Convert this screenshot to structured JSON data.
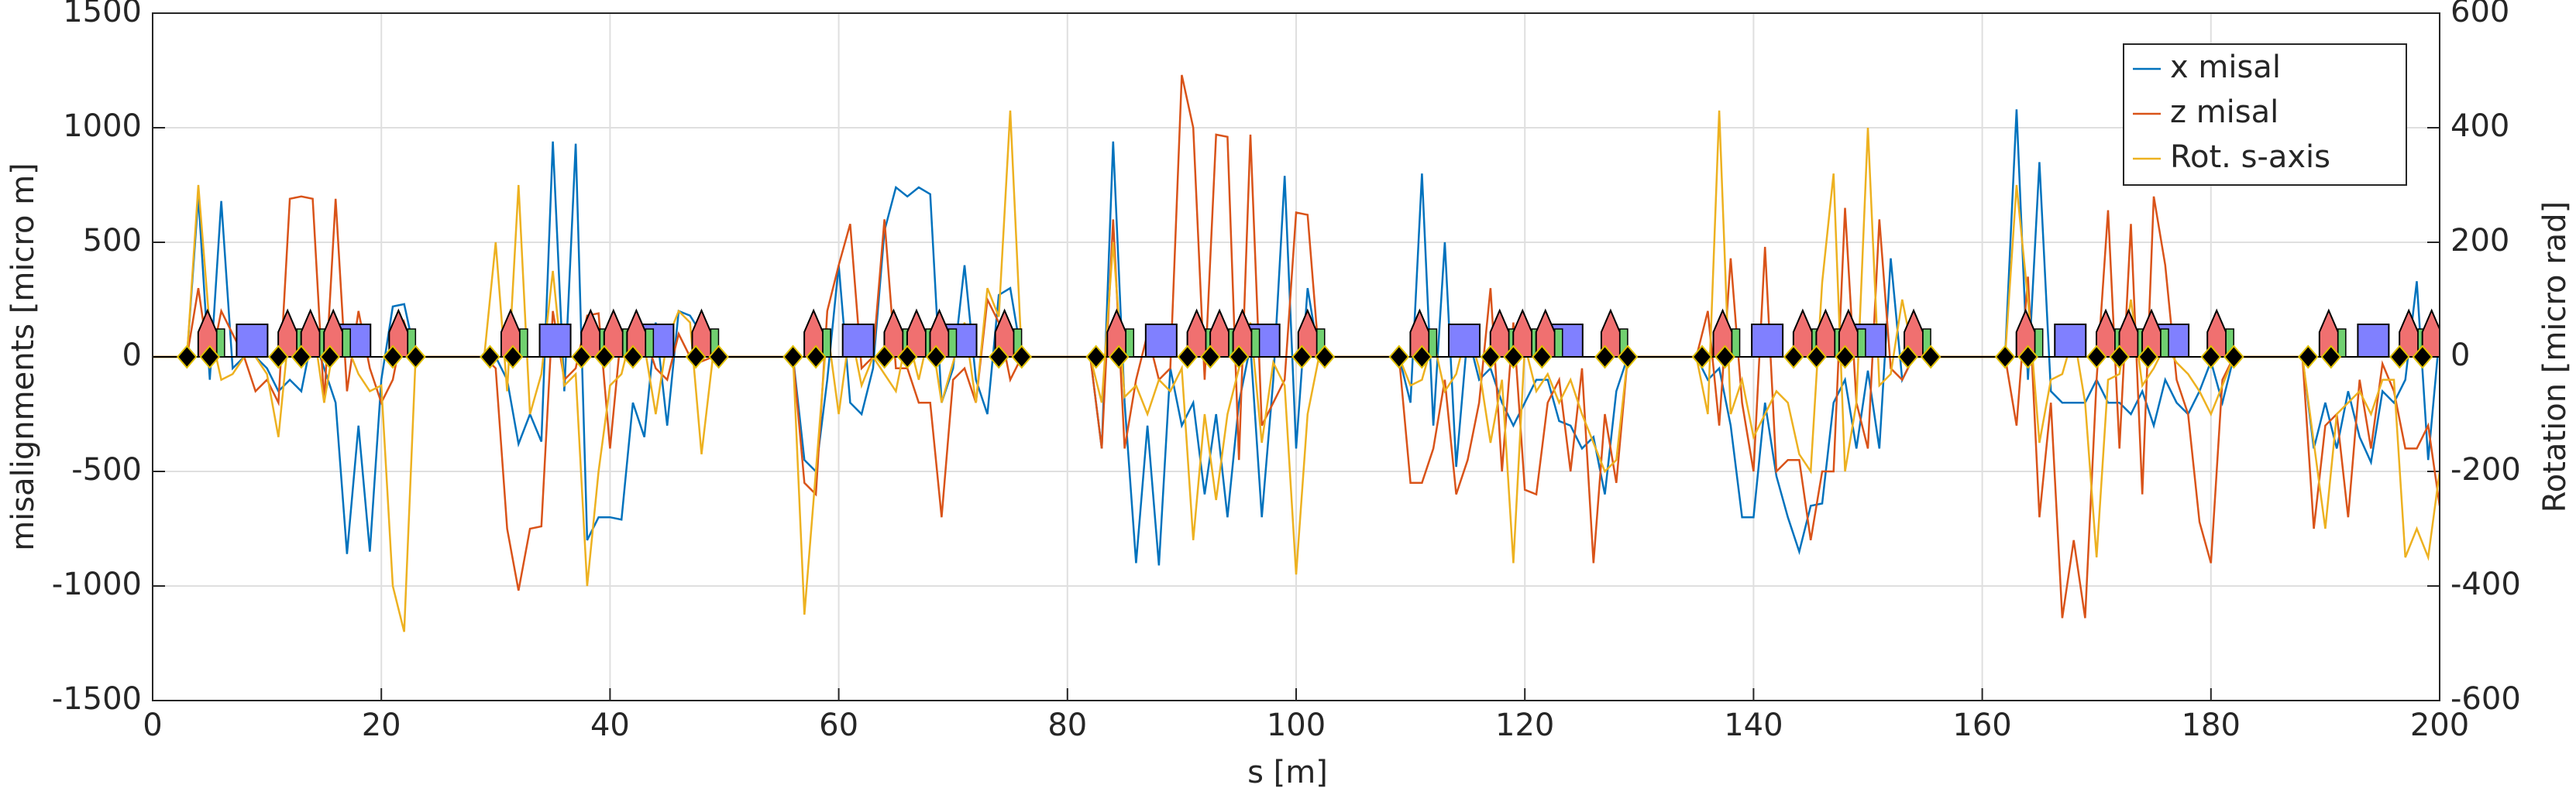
{
  "chart_data": {
    "type": "line",
    "xlabel": "s [m]",
    "ylabel": "misalignments [micro m]",
    "y2label": "Rotation [micro rad]",
    "xlim": [
      0,
      200
    ],
    "xticks": [
      0,
      20,
      40,
      60,
      80,
      100,
      120,
      140,
      160,
      180,
      200
    ],
    "ylim": [
      -1500,
      1500
    ],
    "yticks": [
      -1500,
      -1000,
      -500,
      0,
      500,
      1000,
      1500
    ],
    "y2lim": [
      -600,
      600
    ],
    "y2ticks": [
      -600,
      -400,
      -200,
      0,
      200,
      400,
      600
    ],
    "grid": true,
    "legend": "northeast",
    "x": [
      0,
      3,
      4,
      5,
      6,
      7,
      8,
      9,
      10,
      11,
      12,
      13,
      14,
      15,
      16,
      17,
      18,
      19,
      20,
      21,
      22,
      23,
      29,
      30,
      31,
      32,
      33,
      34,
      35,
      36,
      37,
      38,
      39,
      40,
      41,
      42,
      43,
      44,
      45,
      46,
      47,
      48,
      49,
      56,
      57,
      58,
      59,
      60,
      61,
      62,
      63,
      64,
      65,
      66,
      67,
      68,
      69,
      70,
      71,
      72,
      73,
      74,
      75,
      76,
      82,
      83,
      84,
      85,
      86,
      87,
      88,
      89,
      90,
      91,
      92,
      93,
      94,
      95,
      96,
      97,
      98,
      99,
      100,
      101,
      102,
      109,
      110,
      111,
      112,
      113,
      114,
      115,
      116,
      117,
      118,
      119,
      120,
      121,
      122,
      123,
      124,
      125,
      126,
      127,
      128,
      129,
      135,
      136,
      137,
      138,
      139,
      140,
      141,
      142,
      143,
      144,
      145,
      146,
      147,
      148,
      149,
      150,
      151,
      152,
      153,
      154,
      155,
      162,
      163,
      164,
      165,
      166,
      167,
      168,
      169,
      170,
      171,
      172,
      173,
      174,
      175,
      176,
      177,
      178,
      179,
      180,
      181,
      182,
      188,
      189,
      190,
      191,
      192,
      193,
      194,
      195,
      196,
      197,
      198,
      199,
      200
    ],
    "series": [
      {
        "name": "x misal",
        "color": "#0072bd",
        "values": [
          0,
          0,
          700,
          -100,
          680,
          -50,
          0,
          0,
          -50,
          -150,
          -100,
          -150,
          100,
          -50,
          -200,
          -860,
          -300,
          -850,
          -100,
          220,
          230,
          0,
          0,
          0,
          -100,
          -380,
          -250,
          -370,
          940,
          -150,
          930,
          -800,
          -700,
          -700,
          -710,
          -200,
          -350,
          150,
          -300,
          200,
          180,
          100,
          0,
          0,
          -450,
          -500,
          -100,
          400,
          -200,
          -250,
          -50,
          550,
          740,
          700,
          740,
          710,
          -200,
          -50,
          400,
          -100,
          -250,
          270,
          300,
          0,
          0,
          -400,
          940,
          -200,
          -900,
          -300,
          -910,
          -50,
          -300,
          -200,
          -600,
          -250,
          -700,
          -200,
          50,
          -700,
          -100,
          790,
          -400,
          300,
          0,
          0,
          -200,
          800,
          -300,
          500,
          -480,
          100,
          -100,
          -50,
          -200,
          -300,
          -200,
          -100,
          -100,
          -280,
          -300,
          -400,
          -350,
          -600,
          -150,
          0,
          0,
          -100,
          -50,
          -300,
          -700,
          -700,
          -200,
          -520,
          -700,
          -850,
          -650,
          -640,
          -200,
          -100,
          -400,
          -60,
          -400,
          430,
          -100,
          0,
          0,
          0,
          1080,
          -100,
          850,
          -150,
          -200,
          -200,
          -200,
          -100,
          -200,
          -200,
          -250,
          -150,
          -300,
          -100,
          -200,
          -250,
          -150,
          -20,
          -200,
          0,
          0,
          -400,
          -200,
          -400,
          -150,
          -350,
          -460,
          -150,
          -200,
          -100,
          330,
          -450,
          100
        ]
      },
      {
        "name": "z misal",
        "color": "#d95319",
        "values": [
          0,
          0,
          300,
          -50,
          200,
          100,
          0,
          -150,
          -100,
          -200,
          690,
          700,
          690,
          -200,
          690,
          -150,
          200,
          -50,
          -200,
          -100,
          150,
          0,
          0,
          -50,
          -750,
          -1020,
          -750,
          -740,
          200,
          -100,
          -50,
          180,
          190,
          -400,
          120,
          100,
          100,
          -50,
          -100,
          100,
          0,
          -20,
          0,
          0,
          -550,
          -600,
          200,
          400,
          580,
          -50,
          0,
          600,
          -50,
          -50,
          -200,
          -200,
          -700,
          -100,
          -50,
          -200,
          250,
          150,
          -100,
          0,
          0,
          -400,
          600,
          -400,
          -100,
          100,
          -100,
          -50,
          1230,
          1000,
          -100,
          970,
          960,
          -450,
          970,
          -300,
          -200,
          -100,
          630,
          620,
          0,
          0,
          -550,
          -550,
          -400,
          -100,
          -600,
          -450,
          -200,
          300,
          -500,
          150,
          -580,
          -600,
          -200,
          -100,
          -500,
          -50,
          -900,
          -250,
          -550,
          0,
          0,
          200,
          -300,
          430,
          -200,
          -500,
          480,
          -500,
          -450,
          -450,
          -800,
          -500,
          -500,
          650,
          -200,
          -400,
          600,
          -50,
          -100,
          0,
          0,
          0,
          -300,
          350,
          -700,
          -200,
          -1140,
          -800,
          -1140,
          -100,
          640,
          -400,
          580,
          -600,
          700,
          400,
          -100,
          -250,
          -720,
          -900,
          -100,
          0,
          0,
          -750,
          -300,
          -250,
          -700,
          -100,
          -400,
          -30,
          -150,
          -400,
          -400,
          -300,
          -650
        ]
      },
      {
        "name": "Rot. s-axis",
        "color": "#edb120",
        "axis": "y2",
        "values": [
          0,
          0,
          300,
          50,
          -40,
          -30,
          0,
          0,
          -30,
          -140,
          60,
          20,
          60,
          -80,
          40,
          20,
          -30,
          -60,
          -50,
          -400,
          -480,
          0,
          0,
          200,
          -60,
          300,
          -100,
          -30,
          150,
          -50,
          -30,
          -400,
          -200,
          -50,
          -30,
          50,
          20,
          -100,
          30,
          80,
          60,
          -170,
          0,
          0,
          -450,
          -200,
          50,
          -100,
          50,
          -50,
          0,
          -30,
          -60,
          40,
          -40,
          50,
          -80,
          -10,
          60,
          -80,
          120,
          70,
          430,
          0,
          0,
          -80,
          200,
          -70,
          -50,
          -100,
          -40,
          -60,
          -20,
          -320,
          -100,
          -250,
          -100,
          -20,
          60,
          -150,
          -10,
          -50,
          -380,
          -100,
          0,
          0,
          -50,
          -40,
          30,
          -60,
          -30,
          50,
          -20,
          -150,
          -40,
          -360,
          20,
          -60,
          -30,
          -80,
          -40,
          -100,
          -150,
          -200,
          -180,
          0,
          0,
          -100,
          430,
          -100,
          -40,
          -140,
          -100,
          -60,
          -80,
          -170,
          -200,
          130,
          320,
          -200,
          -80,
          400,
          -50,
          -30,
          100,
          0,
          0,
          0,
          300,
          100,
          -150,
          -40,
          -30,
          40,
          -80,
          -350,
          -40,
          -30,
          100,
          -50,
          -20,
          20,
          -10,
          -30,
          -60,
          -100,
          -50,
          0,
          0,
          -150,
          -300,
          -100,
          -80,
          -60,
          -100,
          -40,
          -40,
          -350,
          -300,
          -350,
          -200
        ]
      }
    ],
    "lattice": {
      "dipoles": [
        8.7,
        17.7,
        35.2,
        44.2,
        61.7,
        70.7,
        88.2,
        97.2,
        114.7,
        123.7,
        141.2,
        150.2,
        167.7,
        176.7,
        194.2
      ],
      "quadrupoles": [
        4.8,
        11.8,
        13.8,
        15.8,
        21.5,
        31.3,
        38.3,
        40.3,
        42.3,
        48,
        57.8,
        64.8,
        66.8,
        68.8,
        74.5,
        84.3,
        91.3,
        93.3,
        95.3,
        101,
        110.8,
        117.8,
        119.8,
        121.8,
        127.5,
        137.3,
        144.3,
        146.3,
        148.3,
        154,
        163.8,
        170.8,
        172.8,
        174.8,
        180.5,
        190.3,
        197.3,
        199.3
      ],
      "markers": [
        3,
        5,
        11,
        13,
        15.5,
        21,
        23,
        29.5,
        31.5,
        37.5,
        39.5,
        42,
        47.5,
        49.5,
        56,
        58,
        64,
        66,
        68.5,
        74,
        76,
        82.5,
        84.5,
        90.5,
        92.5,
        95,
        100.5,
        102.5,
        109,
        111,
        117,
        119,
        121.5,
        127,
        129,
        135.5,
        137.5,
        143.5,
        145.5,
        148,
        153.5,
        155.5,
        162,
        164,
        170,
        172,
        174.5,
        180,
        182,
        188.5,
        190.5,
        196.5,
        198.5
      ]
    }
  }
}
